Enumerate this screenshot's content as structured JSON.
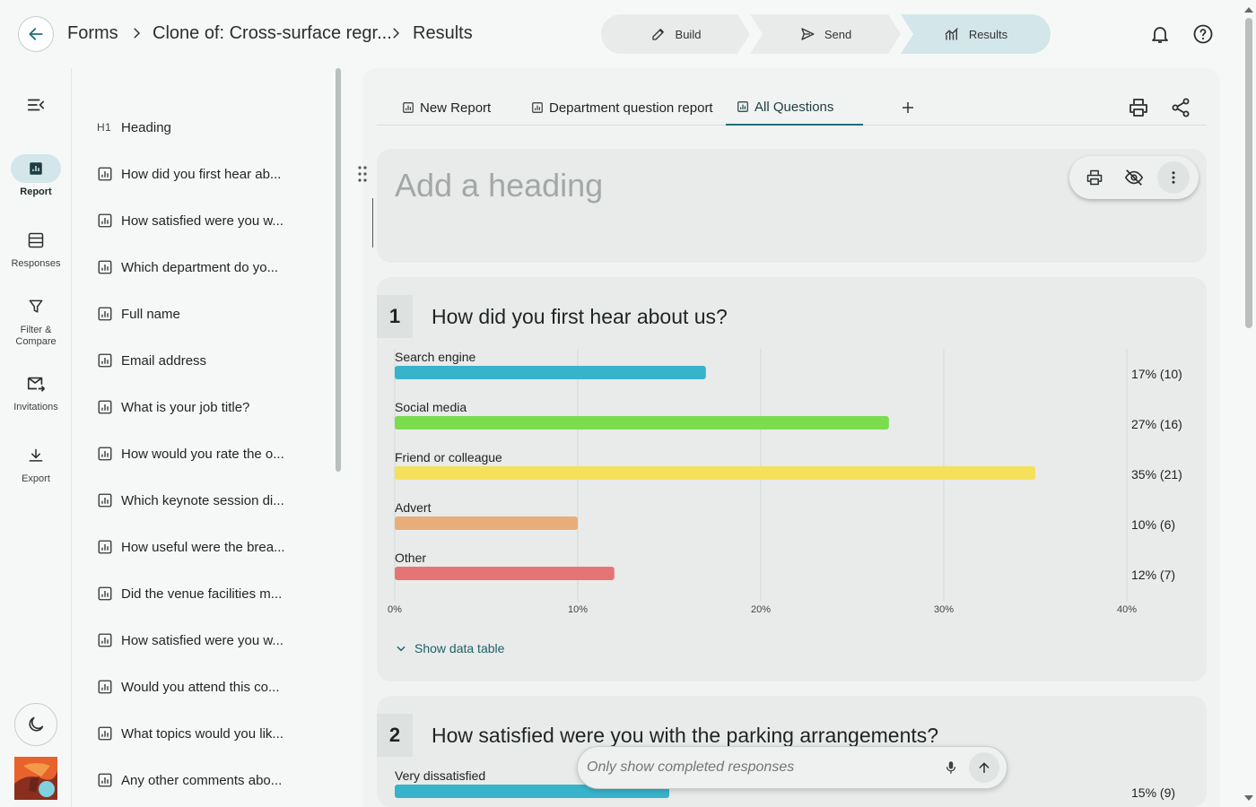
{
  "header": {
    "back_label": "Back",
    "breadcrumb": [
      "Forms",
      "Clone of: Cross-surface regr...",
      "Results"
    ],
    "steps": [
      {
        "label": "Build",
        "icon": "edit-icon"
      },
      {
        "label": "Send",
        "icon": "send-icon"
      },
      {
        "label": "Results",
        "icon": "analytics-icon",
        "active": true
      }
    ],
    "icons": [
      "bell-icon",
      "help-icon"
    ]
  },
  "rail": {
    "items": [
      {
        "label": "Report",
        "icon": "bar-chart-icon",
        "active": true
      },
      {
        "label": "Responses",
        "icon": "table-icon"
      },
      {
        "label": "Filter & Compare",
        "icon": "filter-icon"
      },
      {
        "label": "Invitations",
        "icon": "mail-forward-icon"
      },
      {
        "label": "Export",
        "icon": "download-icon"
      }
    ]
  },
  "question_list": {
    "heading_tag": "H1",
    "heading_label": "Heading",
    "items": [
      "How did you first hear ab...",
      "How satisfied were you w...",
      "Which department do yo...",
      "Full name",
      "Email address",
      "What is your job title?",
      "How would you rate the o...",
      "Which keynote session di...",
      "How useful were the brea...",
      "Did the venue facilities m...",
      "How satisfied were you w...",
      "Would you attend this co...",
      "What topics would you lik...",
      "Any other comments abo..."
    ]
  },
  "tabs": [
    {
      "label": "New Report"
    },
    {
      "label": "Department question report"
    },
    {
      "label": "All Questions",
      "active": true
    }
  ],
  "heading_card": {
    "placeholder": "Add a heading"
  },
  "questions": [
    {
      "number": "1",
      "title": "How did you first hear about us?",
      "show_table_label": "Show data table"
    },
    {
      "number": "2",
      "title": "How satisfied were you with the parking arrangements?"
    }
  ],
  "chart_data": [
    {
      "type": "bar",
      "orientation": "horizontal",
      "categories": [
        "Search engine",
        "Social media",
        "Friend or colleague",
        "Advert",
        "Other"
      ],
      "values": [
        17,
        27,
        35,
        10,
        12
      ],
      "labels": [
        "17% (10)",
        "27% (16)",
        "35% (21)",
        "10% (6)",
        "12% (7)"
      ],
      "colors": [
        "#38b3cc",
        "#7bdc50",
        "#f5e05c",
        "#e8ad7a",
        "#e57575"
      ],
      "xlim": [
        0,
        40
      ],
      "xticks": [
        "0%",
        "10%",
        "20%",
        "30%",
        "40%"
      ],
      "grid": true
    },
    {
      "type": "bar",
      "orientation": "horizontal",
      "categories": [
        "Very dissatisfied"
      ],
      "values": [
        15
      ],
      "labels": [
        "15% (9)"
      ],
      "colors": [
        "#38b3cc"
      ],
      "xlim": [
        0,
        40
      ]
    }
  ],
  "filterbar": {
    "placeholder": "Only show completed responses"
  }
}
